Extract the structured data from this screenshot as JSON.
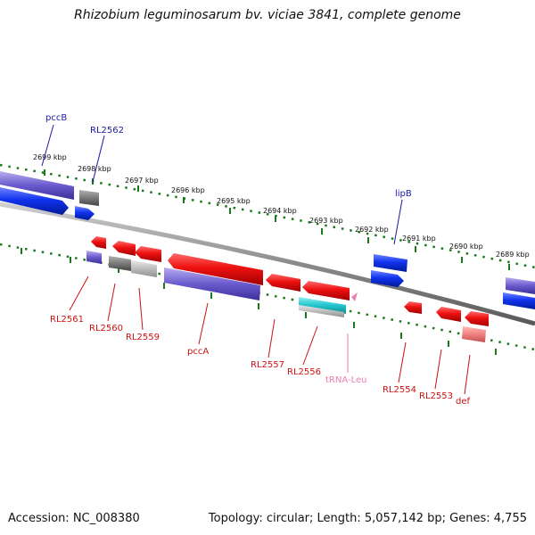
{
  "title": "Rhizobium leguminosarum bv. viciae 3841, complete genome",
  "footer": {
    "accession": "Accession: NC_008380",
    "topology": "Topology: circular; Length: 5,057,142 bp; Genes: 4,755"
  },
  "colors": {
    "tick": "#1a7a1a",
    "backbone": "#8a8a8a",
    "label_forward": "#1a1aa8",
    "label_reverse": "#cc1111",
    "label_rna": "#e87fb0",
    "red": "#ee1111",
    "blue": "#1133ee",
    "purple": "#6a5acd",
    "gray": "#7a7a7a",
    "lightgray": "#bcbcbc",
    "cyan": "#22c4cc",
    "pink": "#f08080"
  },
  "ticks": [
    {
      "label": "2699 kbp"
    },
    {
      "label": "2698 kbp"
    },
    {
      "label": "2697 kbp"
    },
    {
      "label": "2696 kbp"
    },
    {
      "label": "2695 kbp"
    },
    {
      "label": "2694 kbp"
    },
    {
      "label": "2693 kbp"
    },
    {
      "label": "2692 kbp"
    },
    {
      "label": "2691 kbp"
    },
    {
      "label": "2690 kbp"
    },
    {
      "label": "2689 kbp"
    }
  ],
  "gene_labels": [
    {
      "name": "pccB",
      "strand": "forward"
    },
    {
      "name": "RL2562",
      "strand": "forward"
    },
    {
      "name": "lipB",
      "strand": "forward"
    },
    {
      "name": "RL2561",
      "strand": "reverse"
    },
    {
      "name": "RL2560",
      "strand": "reverse"
    },
    {
      "name": "RL2559",
      "strand": "reverse"
    },
    {
      "name": "pccA",
      "strand": "reverse"
    },
    {
      "name": "RL2557",
      "strand": "reverse"
    },
    {
      "name": "RL2556",
      "strand": "reverse"
    },
    {
      "name": "tRNA-Leu",
      "strand": "rna"
    },
    {
      "name": "RL2554",
      "strand": "reverse"
    },
    {
      "name": "RL2553",
      "strand": "reverse"
    },
    {
      "name": "def",
      "strand": "reverse"
    }
  ]
}
